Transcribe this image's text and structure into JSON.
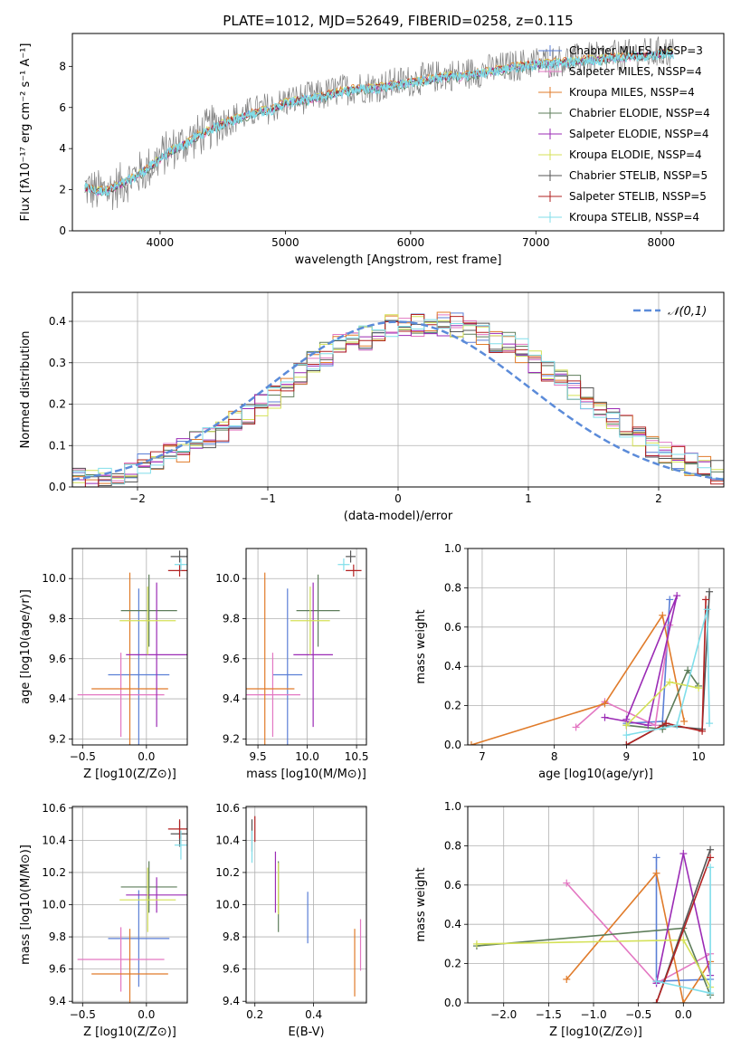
{
  "chart_data": [
    {
      "id": "spectrum",
      "type": "line",
      "title": "PLATE=1012, MJD=52649, FIBERID=0258, z=0.115",
      "xlabel": "wavelength [Angstrom, rest frame]",
      "ylabel": "Flux [fλ10⁻¹⁷ erg cm⁻² s⁻¹ A⁻¹]",
      "xlim": [
        3300,
        8500
      ],
      "ylim": [
        0,
        9.6
      ],
      "xticks": [
        4000,
        5000,
        6000,
        7000,
        8000
      ],
      "yticks": [
        0,
        2,
        4,
        6,
        8
      ],
      "grid": false,
      "legend_position": "right",
      "series": [
        {
          "name": "Chabrier MILES, NSSP=3",
          "color": "#5b7fd6"
        },
        {
          "name": "Salpeter MILES, NSSP=4",
          "color": "#e377c2"
        },
        {
          "name": "Kroupa MILES, NSSP=4",
          "color": "#e07b2a"
        },
        {
          "name": "Chabrier ELODIE, NSSP=4",
          "color": "#5d7d5a"
        },
        {
          "name": "Salpeter ELODIE, NSSP=4",
          "color": "#9b2bb5"
        },
        {
          "name": "Kroupa ELODIE, NSSP=4",
          "color": "#d4e157"
        },
        {
          "name": "Chabrier STELIB, NSSP=5",
          "color": "#555555"
        },
        {
          "name": "Salpeter STELIB, NSSP=5",
          "color": "#b22222"
        },
        {
          "name": "Kroupa STELIB, NSSP=4",
          "color": "#80deea"
        }
      ],
      "data_spectrum": {
        "color": "#808080",
        "x": [
          3400,
          3500,
          3600,
          3700,
          3800,
          3900,
          4000,
          4100,
          4200,
          4300,
          4400,
          4500,
          4600,
          4700,
          4800,
          4900,
          5000,
          5100,
          5200,
          5300,
          5400,
          5500,
          5600,
          5700,
          5800,
          5900,
          6000,
          6100,
          6200,
          6300,
          6400,
          6500,
          6600,
          6700,
          6800,
          6900,
          7000,
          7100,
          7200,
          7300,
          7400,
          7500,
          7600,
          7700,
          7800,
          7900,
          8000,
          8100
        ],
        "y": [
          2.1,
          1.9,
          2.0,
          2.3,
          2.7,
          3.0,
          3.6,
          4.0,
          4.3,
          4.6,
          5.0,
          5.3,
          5.5,
          5.7,
          5.9,
          6.0,
          6.3,
          6.4,
          6.5,
          6.6,
          6.8,
          6.9,
          7.0,
          7.0,
          7.1,
          7.2,
          7.3,
          7.4,
          7.5,
          7.6,
          7.6,
          7.7,
          7.8,
          7.9,
          8.0,
          8.1,
          8.2,
          8.2,
          8.3,
          8.3,
          8.4,
          8.4,
          8.5,
          8.5,
          8.6,
          8.6,
          8.7,
          8.7
        ]
      },
      "model_spectrum": {
        "color": "#80deea",
        "x": [
          3400,
          3500,
          3600,
          3700,
          3800,
          3900,
          4000,
          4100,
          4200,
          4300,
          4400,
          4500,
          4600,
          4700,
          4800,
          4900,
          5000,
          5100,
          5200,
          5300,
          5400,
          5500,
          5600,
          5700,
          5800,
          5900,
          6000,
          6100,
          6200,
          6300,
          6400,
          6500,
          6600,
          6700,
          6800,
          6900,
          7000,
          7100,
          7200,
          7300,
          7400,
          7500,
          7600,
          7700,
          7800,
          7900,
          8000,
          8100
        ],
        "y": [
          2.1,
          1.9,
          2.0,
          2.3,
          2.6,
          3.0,
          3.5,
          3.9,
          4.2,
          4.6,
          4.9,
          5.2,
          5.4,
          5.6,
          5.8,
          5.9,
          6.2,
          6.3,
          6.4,
          6.5,
          6.7,
          6.8,
          6.9,
          6.9,
          7.0,
          7.1,
          7.2,
          7.3,
          7.4,
          7.5,
          7.5,
          7.6,
          7.7,
          7.8,
          7.9,
          8.0,
          8.1,
          8.1,
          8.2,
          8.2,
          8.3,
          8.3,
          8.4,
          8.4,
          8.5,
          8.5,
          8.6,
          8.6
        ]
      }
    },
    {
      "id": "residuals",
      "type": "histogram",
      "xlabel": "(data-model)/error",
      "ylabel": "Normed distribution",
      "xlim": [
        -2.5,
        2.5
      ],
      "ylim": [
        0,
        0.47
      ],
      "xticks": [
        -2,
        -1,
        0,
        1,
        2
      ],
      "yticks": [
        0.0,
        0.1,
        0.2,
        0.3,
        0.4
      ],
      "grid": true,
      "legend_position": "upper right",
      "legend": "𝒩(0,1)",
      "normal_curve_color": "#5b8bd9",
      "bin_width": 0.1,
      "bin_start": -2.5,
      "reference_density": [
        0.017,
        0.021,
        0.028,
        0.033,
        0.04,
        0.052,
        0.061,
        0.075,
        0.09,
        0.105,
        0.12,
        0.135,
        0.16,
        0.18,
        0.2,
        0.22,
        0.245,
        0.27,
        0.3,
        0.32,
        0.345,
        0.36,
        0.36,
        0.375,
        0.39,
        0.395,
        0.39,
        0.38,
        0.395,
        0.39,
        0.375,
        0.37,
        0.35,
        0.35,
        0.33,
        0.305,
        0.28,
        0.26,
        0.24,
        0.215,
        0.19,
        0.17,
        0.15,
        0.125,
        0.1,
        0.085,
        0.07,
        0.055,
        0.045,
        0.035
      ]
    },
    {
      "id": "age-vs-Z",
      "type": "scatter",
      "xlabel": "Z [log10(Z/Z⊙)]",
      "ylabel": "age  [log10(age/yr)]",
      "xlim": [
        -0.58,
        0.32
      ],
      "ylim": [
        9.17,
        10.15
      ],
      "xticks": [
        -0.5,
        0.0
      ],
      "yticks": [
        9.2,
        9.4,
        9.6,
        9.8,
        10.0
      ],
      "grid": true,
      "points": [
        {
          "series": "Chabrier MILES",
          "x": -0.06,
          "y": 9.52,
          "xerr": 0.24,
          "yerr": 0.43
        },
        {
          "series": "Salpeter MILES",
          "x": -0.2,
          "y": 9.42,
          "xerr": 0.34,
          "yerr": 0.21
        },
        {
          "series": "Kroupa MILES",
          "x": -0.13,
          "y": 9.45,
          "xerr": 0.3,
          "yerr": 0.58
        },
        {
          "series": "Chabrier ELODIE",
          "x": 0.02,
          "y": 9.84,
          "xerr": 0.22,
          "yerr": 0.18
        },
        {
          "series": "Salpeter ELODIE",
          "x": 0.08,
          "y": 9.62,
          "xerr": 0.24,
          "yerr": 0.36
        },
        {
          "series": "Kroupa ELODIE",
          "x": 0.01,
          "y": 9.79,
          "xerr": 0.22,
          "yerr": 0.17
        },
        {
          "series": "Chabrier STELIB",
          "x": 0.26,
          "y": 10.11,
          "xerr": 0.07,
          "yerr": 0.03
        },
        {
          "series": "Salpeter STELIB",
          "x": 0.26,
          "y": 10.04,
          "xerr": 0.09,
          "yerr": 0.03
        },
        {
          "series": "Kroupa STELIB",
          "x": 0.27,
          "y": 10.07,
          "xerr": 0.05,
          "yerr": 0.03
        }
      ]
    },
    {
      "id": "age-vs-mass",
      "type": "scatter",
      "xlabel": "mass [log10(M/M⊙)]",
      "ylabel": "",
      "xlim": [
        9.38,
        10.6
      ],
      "ylim": [
        9.17,
        10.15
      ],
      "xticks": [
        9.5,
        10.0,
        10.5
      ],
      "yticks": [
        9.2,
        9.4,
        9.6,
        9.8,
        10.0
      ],
      "grid": true,
      "points": [
        {
          "series": "Chabrier MILES",
          "x": 9.8,
          "y": 9.52,
          "xerr": 0.15,
          "yerr": 0.43
        },
        {
          "series": "Salpeter MILES",
          "x": 9.65,
          "y": 9.42,
          "xerr": 0.28,
          "yerr": 0.21
        },
        {
          "series": "Kroupa MILES",
          "x": 9.57,
          "y": 9.45,
          "xerr": 0.3,
          "yerr": 0.58
        },
        {
          "series": "Chabrier ELODIE",
          "x": 10.11,
          "y": 9.84,
          "xerr": 0.22,
          "yerr": 0.18
        },
        {
          "series": "Salpeter ELODIE",
          "x": 10.06,
          "y": 9.62,
          "xerr": 0.2,
          "yerr": 0.36
        },
        {
          "series": "Kroupa ELODIE",
          "x": 10.03,
          "y": 9.79,
          "xerr": 0.2,
          "yerr": 0.17
        },
        {
          "series": "Chabrier STELIB",
          "x": 10.44,
          "y": 10.11,
          "xerr": 0.05,
          "yerr": 0.03
        },
        {
          "series": "Salpeter STELIB",
          "x": 10.47,
          "y": 10.04,
          "xerr": 0.08,
          "yerr": 0.03
        },
        {
          "series": "Kroupa STELIB",
          "x": 10.37,
          "y": 10.07,
          "xerr": 0.06,
          "yerr": 0.03
        }
      ]
    },
    {
      "id": "mass-weight-vs-age",
      "type": "line",
      "xlabel": "age  [log10(age/yr)]",
      "ylabel": "mass weight",
      "xlim": [
        6.8,
        10.35
      ],
      "ylim": [
        0,
        1.0
      ],
      "xticks": [
        7,
        8,
        9,
        10
      ],
      "yticks": [
        0.0,
        0.2,
        0.4,
        0.6,
        0.8,
        1.0
      ],
      "grid": true,
      "series": [
        {
          "name": "Chabrier MILES",
          "x": [
            9.0,
            9.5,
            9.6
          ],
          "y": [
            0.11,
            0.12,
            0.74
          ]
        },
        {
          "name": "Salpeter MILES",
          "x": [
            8.3,
            8.7,
            9.4,
            9.6
          ],
          "y": [
            0.09,
            0.22,
            0.1,
            0.61
          ]
        },
        {
          "name": "Kroupa MILES",
          "x": [
            6.85,
            8.7,
            9.5,
            9.8
          ],
          "y": [
            0.0,
            0.21,
            0.66,
            0.12
          ]
        },
        {
          "name": "Chabrier ELODIE",
          "x": [
            9.0,
            9.5,
            9.85,
            10.0
          ],
          "y": [
            0.1,
            0.08,
            0.38,
            0.3
          ]
        },
        {
          "name": "Salpeter ELODIE",
          "x": [
            8.7,
            9.3,
            9.7,
            9.0
          ],
          "y": [
            0.14,
            0.1,
            0.76,
            0.13
          ]
        },
        {
          "name": "Kroupa ELODIE",
          "x": [
            9.0,
            9.6,
            10.0
          ],
          "y": [
            0.1,
            0.32,
            0.29
          ]
        },
        {
          "name": "Chabrier STELIB",
          "x": [
            9.0,
            9.5,
            10.05,
            10.15
          ],
          "y": [
            0.0,
            0.1,
            0.08,
            0.78
          ]
        },
        {
          "name": "Salpeter STELIB",
          "x": [
            9.0,
            9.55,
            10.05,
            10.1
          ],
          "y": [
            0.0,
            0.11,
            0.07,
            0.74
          ]
        },
        {
          "name": "Kroupa STELIB",
          "x": [
            9.0,
            9.7,
            10.12,
            10.15
          ],
          "y": [
            0.05,
            0.1,
            0.69,
            0.11
          ]
        }
      ]
    },
    {
      "id": "mass-vs-Z",
      "type": "scatter",
      "xlabel": "Z [log10(Z/Z⊙)]",
      "ylabel": "mass [log10(M/M⊙)]",
      "xlim": [
        -0.58,
        0.32
      ],
      "ylim": [
        9.39,
        10.61
      ],
      "xticks": [
        -0.5,
        0.0
      ],
      "yticks": [
        9.4,
        9.6,
        9.8,
        10.0,
        10.2,
        10.4,
        10.6
      ],
      "grid": true,
      "points": [
        {
          "series": "Chabrier MILES",
          "x": -0.06,
          "y": 9.79,
          "xerr": 0.24,
          "yerr": 0.3
        },
        {
          "series": "Salpeter MILES",
          "x": -0.2,
          "y": 9.66,
          "xerr": 0.34,
          "yerr": 0.2
        },
        {
          "series": "Kroupa MILES",
          "x": -0.13,
          "y": 9.57,
          "xerr": 0.3,
          "yerr": 0.28
        },
        {
          "series": "Chabrier ELODIE",
          "x": 0.02,
          "y": 10.11,
          "xerr": 0.22,
          "yerr": 0.16
        },
        {
          "series": "Salpeter ELODIE",
          "x": 0.08,
          "y": 10.06,
          "xerr": 0.24,
          "yerr": 0.11
        },
        {
          "series": "Kroupa ELODIE",
          "x": 0.01,
          "y": 10.03,
          "xerr": 0.22,
          "yerr": 0.2
        },
        {
          "series": "Chabrier STELIB",
          "x": 0.26,
          "y": 10.44,
          "xerr": 0.07,
          "yerr": 0.08
        },
        {
          "series": "Salpeter STELIB",
          "x": 0.26,
          "y": 10.47,
          "xerr": 0.09,
          "yerr": 0.06
        },
        {
          "series": "Kroupa STELIB",
          "x": 0.27,
          "y": 10.37,
          "xerr": 0.05,
          "yerr": 0.09
        }
      ]
    },
    {
      "id": "mass-vs-ebv",
      "type": "scatter",
      "xlabel": "E(B-V)",
      "ylabel": "",
      "xlim": [
        0.17,
        0.58
      ],
      "ylim": [
        9.39,
        10.61
      ],
      "xticks": [
        0.2,
        0.4
      ],
      "yticks": [
        9.4,
        9.6,
        9.8,
        10.0,
        10.2,
        10.4,
        10.6
      ],
      "grid": true,
      "points": [
        {
          "series": "Chabrier MILES",
          "x": 0.38,
          "y": 9.92,
          "yerr": 0.16
        },
        {
          "series": "Salpeter MILES",
          "x": 0.56,
          "y": 9.75,
          "yerr": 0.16
        },
        {
          "series": "Kroupa MILES",
          "x": 0.54,
          "y": 9.64,
          "yerr": 0.21
        },
        {
          "series": "Chabrier ELODIE",
          "x": 0.28,
          "y": 10.05,
          "yerr": 0.22
        },
        {
          "series": "Salpeter ELODIE",
          "x": 0.27,
          "y": 10.14,
          "yerr": 0.19
        },
        {
          "series": "Kroupa ELODIE",
          "x": 0.28,
          "y": 10.1,
          "yerr": 0.16
        },
        {
          "series": "Chabrier STELIB",
          "x": 0.19,
          "y": 10.43,
          "yerr": 0.1
        },
        {
          "series": "Salpeter STELIB",
          "x": 0.2,
          "y": 10.47,
          "yerr": 0.08
        },
        {
          "series": "Kroupa STELIB",
          "x": 0.19,
          "y": 10.36,
          "yerr": 0.1
        }
      ]
    },
    {
      "id": "mass-weight-vs-Z",
      "type": "line",
      "xlabel": "Z [log10(Z/Z⊙)]",
      "ylabel": "mass weight",
      "xlim": [
        -2.4,
        0.45
      ],
      "ylim": [
        0,
        1.0
      ],
      "xticks": [
        -2.0,
        -1.5,
        -1.0,
        -0.5,
        0.0
      ],
      "yticks": [
        0.0,
        0.2,
        0.4,
        0.6,
        0.8,
        1.0
      ],
      "grid": true,
      "series": [
        {
          "name": "Chabrier MILES",
          "x": [
            -0.3,
            -0.3,
            0.3
          ],
          "y": [
            0.74,
            0.11,
            0.12
          ]
        },
        {
          "name": "Salpeter MILES",
          "x": [
            -1.3,
            -0.3,
            0.3
          ],
          "y": [
            0.61,
            0.1,
            0.25
          ]
        },
        {
          "name": "Kroupa MILES",
          "x": [
            -1.3,
            -0.3,
            0.0,
            0.3
          ],
          "y": [
            0.12,
            0.66,
            0.0,
            0.21
          ]
        },
        {
          "name": "Chabrier ELODIE",
          "x": [
            -2.3,
            0.0,
            0.3
          ],
          "y": [
            0.29,
            0.38,
            0.04
          ]
        },
        {
          "name": "Salpeter ELODIE",
          "x": [
            -0.3,
            0.0,
            0.3
          ],
          "y": [
            0.1,
            0.76,
            0.14
          ]
        },
        {
          "name": "Kroupa ELODIE",
          "x": [
            -2.3,
            0.0,
            0.3
          ],
          "y": [
            0.3,
            0.32,
            0.08
          ]
        },
        {
          "name": "Chabrier STELIB",
          "x": [
            -0.3,
            0.3
          ],
          "y": [
            0.0,
            0.78
          ]
        },
        {
          "name": "Salpeter STELIB",
          "x": [
            -0.3,
            0.3
          ],
          "y": [
            0.0,
            0.74
          ]
        },
        {
          "name": "Kroupa STELIB",
          "x": [
            -0.3,
            0.3,
            0.3
          ],
          "y": [
            0.11,
            0.05,
            0.69
          ]
        }
      ]
    }
  ]
}
